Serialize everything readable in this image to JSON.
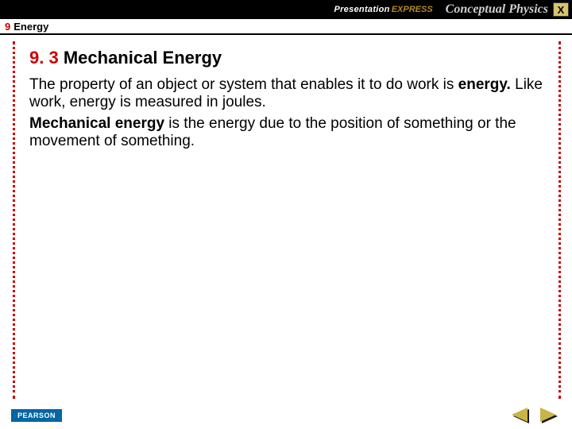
{
  "topbar": {
    "brand_presentation": "Presentation",
    "brand_express": "EXPRESS",
    "brand_conceptual": "Conceptual Physics",
    "close_label": "X"
  },
  "chapter": {
    "number": "9",
    "title": "Energy"
  },
  "section": {
    "number": "9. 3",
    "title": "Mechanical Energy"
  },
  "body": {
    "p1_a": "The property of an object or system that enables it to do work is ",
    "p1_bold": "energy.",
    "p1_b": "  Like work, energy is measured in joules.",
    "p2_bold": "Mechanical energy",
    "p2_a": " is the energy due to the position of something or the movement of something."
  },
  "footer": {
    "publisher": "PEARSON"
  },
  "colors": {
    "accent": "#cc0000",
    "topbar_bg": "#000000",
    "close_bg": "#d7c56a",
    "logo_bg": "#0066a4",
    "arrow_fill": "#c9b44a"
  }
}
